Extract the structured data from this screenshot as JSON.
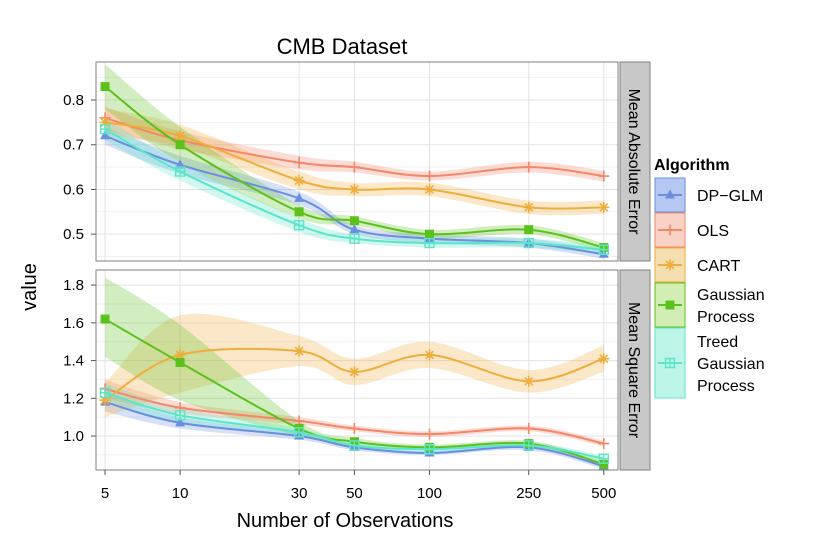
{
  "chart_data": {
    "type": "line",
    "title": "CMB Dataset",
    "xlabel": "Number of Observations",
    "ylabel": "value",
    "x": [
      5,
      10,
      30,
      50,
      100,
      250,
      500
    ],
    "x_scale": "log",
    "xlim": [
      4.6,
      570
    ],
    "legend_title": "Algorithm",
    "legend_position": "right",
    "series": [
      {
        "key": "dpglm",
        "name": "DP-GLM",
        "label_lines": [
          "DP−GLM"
        ],
        "color": "#6A8EE0",
        "fill": "#B6C8F2",
        "marker": "triangle"
      },
      {
        "key": "ols",
        "name": "OLS",
        "label_lines": [
          "OLS"
        ],
        "color": "#F4866A",
        "fill": "#F9D2C6",
        "marker": "plus"
      },
      {
        "key": "cart",
        "name": "CART",
        "label_lines": [
          "CART"
        ],
        "color": "#EDAE3C",
        "fill": "#F5DFB0",
        "marker": "asterisk"
      },
      {
        "key": "gp",
        "name": "Gaussian Process",
        "label_lines": [
          "Gaussian",
          "Process"
        ],
        "color": "#5CC11D",
        "fill": "#D2EEB5",
        "marker": "square"
      },
      {
        "key": "tgp",
        "name": "Treed Gaussian Process",
        "label_lines": [
          "Treed",
          "Gaussian",
          "Process"
        ],
        "color": "#5BE6C8",
        "fill": "#BDF5E8",
        "marker": "boxed-cross"
      }
    ],
    "panels": [
      {
        "strip": "Mean Absolute Error",
        "ylim": [
          0.44,
          0.885
        ],
        "yticks": [
          0.5,
          0.6,
          0.7,
          0.8
        ],
        "ytick_labels": [
          "0.5",
          "0.6",
          "0.7",
          "0.8"
        ],
        "values": {
          "dpglm": [
            0.72,
            0.655,
            0.58,
            0.51,
            0.49,
            0.48,
            0.455
          ],
          "ols": [
            0.76,
            0.71,
            0.66,
            0.65,
            0.63,
            0.65,
            0.63
          ],
          "cart": [
            0.75,
            0.72,
            0.62,
            0.6,
            0.6,
            0.56,
            0.56
          ],
          "gp": [
            0.83,
            0.7,
            0.55,
            0.53,
            0.5,
            0.51,
            0.47
          ],
          "tgp": [
            0.735,
            0.64,
            0.52,
            0.49,
            0.48,
            0.48,
            0.465
          ]
        },
        "bands": {
          "dpglm": {
            "lo": [
              0.7,
              0.635,
              0.565,
              0.5,
              0.48,
              0.47,
              0.445
            ],
            "hi": [
              0.74,
              0.675,
              0.595,
              0.52,
              0.5,
              0.49,
              0.465
            ]
          },
          "ols": {
            "lo": [
              0.735,
              0.69,
              0.645,
              0.638,
              0.62,
              0.638,
              0.618
            ],
            "hi": [
              0.785,
              0.73,
              0.675,
              0.662,
              0.64,
              0.662,
              0.642
            ]
          },
          "cart": {
            "lo": [
              0.72,
              0.695,
              0.6,
              0.585,
              0.585,
              0.545,
              0.545
            ],
            "hi": [
              0.78,
              0.745,
              0.64,
              0.615,
              0.615,
              0.575,
              0.575
            ]
          },
          "gp": {
            "lo": [
              0.78,
              0.66,
              0.535,
              0.52,
              0.49,
              0.5,
              0.46
            ],
            "hi": [
              0.88,
              0.74,
              0.565,
              0.54,
              0.51,
              0.52,
              0.48
            ]
          },
          "tgp": {
            "lo": [
              0.71,
              0.62,
              0.505,
              0.48,
              0.47,
              0.47,
              0.455
            ],
            "hi": [
              0.76,
              0.66,
              0.535,
              0.5,
              0.49,
              0.49,
              0.475
            ]
          }
        }
      },
      {
        "strip": "Mean Square Error",
        "ylim": [
          0.82,
          1.88
        ],
        "yticks": [
          1.0,
          1.2,
          1.4,
          1.6,
          1.8
        ],
        "ytick_labels": [
          "1.0",
          "1.2",
          "1.4",
          "1.6",
          "1.8"
        ],
        "values": {
          "dpglm": [
            1.18,
            1.07,
            1.0,
            0.94,
            0.91,
            0.94,
            0.84
          ],
          "ols": [
            1.25,
            1.15,
            1.08,
            1.04,
            1.01,
            1.04,
            0.96
          ],
          "cart": [
            1.19,
            1.43,
            1.45,
            1.34,
            1.43,
            1.29,
            1.41
          ],
          "gp": [
            1.62,
            1.39,
            1.04,
            0.97,
            0.94,
            0.96,
            0.85
          ],
          "tgp": [
            1.23,
            1.11,
            1.02,
            0.95,
            0.93,
            0.95,
            0.88
          ]
        },
        "bands": {
          "dpglm": {
            "lo": [
              1.13,
              1.04,
              0.98,
              0.925,
              0.9,
              0.925,
              0.825
            ],
            "hi": [
              1.23,
              1.1,
              1.02,
              0.955,
              0.92,
              0.955,
              0.855
            ]
          },
          "ols": {
            "lo": [
              1.2,
              1.12,
              1.06,
              1.025,
              0.995,
              1.025,
              0.945
            ],
            "hi": [
              1.3,
              1.18,
              1.1,
              1.055,
              1.025,
              1.055,
              0.975
            ]
          },
          "cart": {
            "lo": [
              1.1,
              1.23,
              1.37,
              1.27,
              1.36,
              1.23,
              1.34
            ],
            "hi": [
              1.28,
              1.64,
              1.53,
              1.41,
              1.5,
              1.35,
              1.48
            ]
          },
          "gp": {
            "lo": [
              1.42,
              1.19,
              1.0,
              0.95,
              0.925,
              0.945,
              0.835
            ],
            "hi": [
              1.84,
              1.59,
              1.08,
              0.99,
              0.955,
              0.975,
              0.865
            ]
          },
          "tgp": {
            "lo": [
              1.18,
              1.07,
              1.0,
              0.935,
              0.915,
              0.935,
              0.865
            ],
            "hi": [
              1.28,
              1.15,
              1.04,
              0.965,
              0.945,
              0.965,
              0.895
            ]
          }
        }
      }
    ]
  }
}
